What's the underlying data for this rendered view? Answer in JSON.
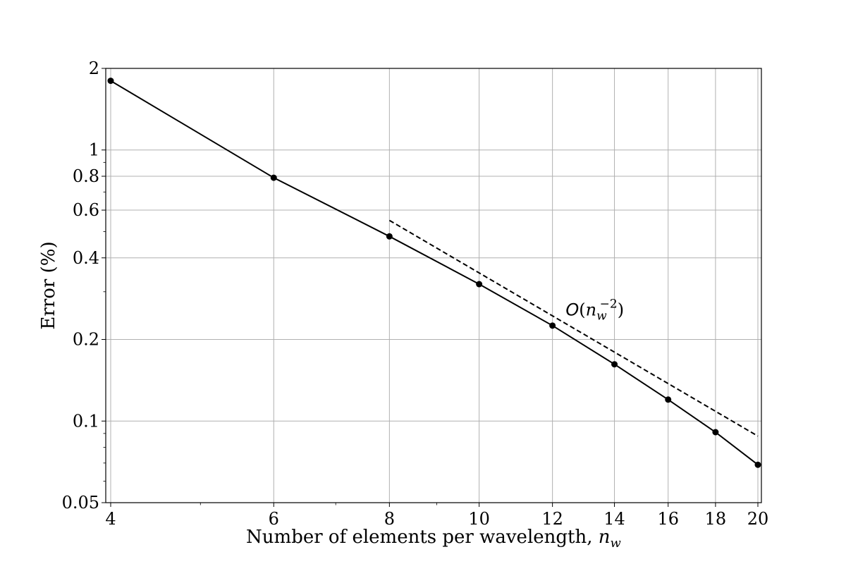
{
  "chart_data": {
    "type": "line",
    "xlabel": "Number of elements per wavelength, n_w",
    "ylabel": "Error (%)",
    "x_scale": "log",
    "y_scale": "log",
    "xlim": [
      4,
      20
    ],
    "ylim": [
      0.05,
      2
    ],
    "xticks": [
      4,
      6,
      8,
      10,
      12,
      14,
      16,
      18,
      20
    ],
    "xtick_labels": [
      "4",
      "6",
      "8",
      "10",
      "12",
      "14",
      "16",
      "18",
      "20"
    ],
    "yticks": [
      0.05,
      0.1,
      0.2,
      0.4,
      0.6,
      0.8,
      1,
      2
    ],
    "ytick_labels": [
      "0.05",
      "0.1",
      "0.2",
      "0.4",
      "0.6",
      "0.8",
      "1",
      "2"
    ],
    "grid": true,
    "series": [
      {
        "style": "solid-with-markers",
        "color": "#000000",
        "x": [
          4,
          6,
          8,
          10,
          12,
          14,
          16,
          18,
          20
        ],
        "y": [
          1.8,
          0.79,
          0.48,
          0.32,
          0.225,
          0.162,
          0.12,
          0.091,
          0.069
        ]
      },
      {
        "style": "dashed",
        "color": "#000000",
        "x": [
          8,
          20
        ],
        "y": [
          0.55,
          0.088
        ]
      }
    ],
    "annotations": [
      {
        "text": "O(n_w^-2)",
        "x": 12.4,
        "y": 0.245
      }
    ]
  }
}
